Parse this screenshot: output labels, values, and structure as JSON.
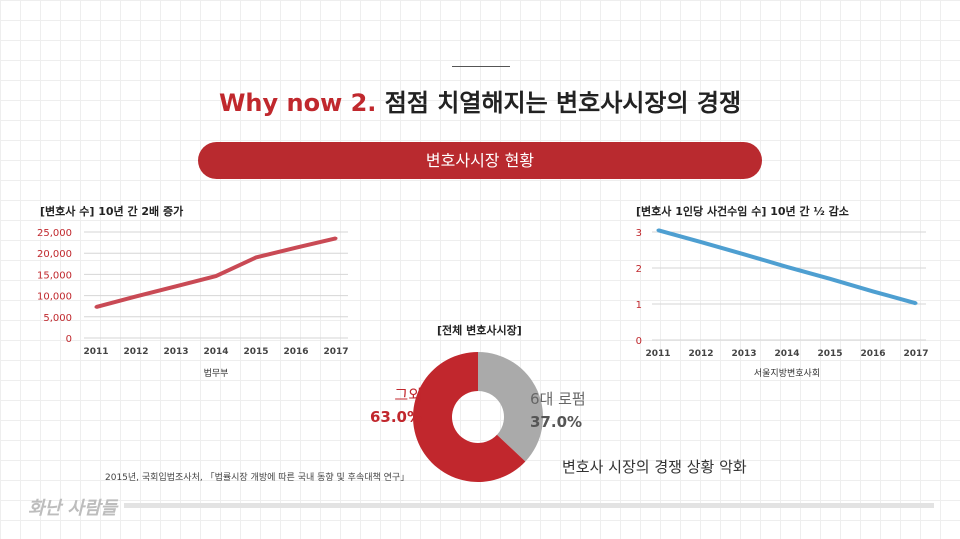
{
  "header": {
    "title_accent": "Why now 2.",
    "title_main": "점점 치열해지는 변호사시장의 경쟁",
    "banner": "변호사시장 현황"
  },
  "chart_data": [
    {
      "type": "line",
      "title": "[변호사 수] 10년 간 2배 증가",
      "x": [
        "2011",
        "2012",
        "2013",
        "2014",
        "2015",
        "2016",
        "2017"
      ],
      "xlabel": "법무부",
      "yticks": [
        "0",
        "5,000",
        "10,000",
        "15,000",
        "20,000",
        "25,000"
      ],
      "ylim": [
        0,
        25000
      ],
      "values": [
        7300,
        9800,
        12200,
        14600,
        19000,
        21300,
        23500
      ],
      "color": "#c94a55",
      "grid": true
    },
    {
      "type": "line",
      "title": "[변호사 1인당 사건수임 수] 10년 간 ½ 감소",
      "x": [
        "2011",
        "2012",
        "2013",
        "2014",
        "2015",
        "2016",
        "2017"
      ],
      "xlabel": "서울지방변호사회",
      "yticks": [
        "0",
        "1",
        "2",
        "3"
      ],
      "ylim": [
        0,
        3
      ],
      "values": [
        3.05,
        2.72,
        2.38,
        2.03,
        1.7,
        1.35,
        1.02
      ],
      "color": "#4e9fd1",
      "grid": true
    },
    {
      "type": "pie",
      "title": "[전체 변호사시장]",
      "labels": [
        "6대 로펌",
        "그외"
      ],
      "values": [
        37.0,
        63.0
      ],
      "value_labels": [
        "37.0%",
        "63.0%"
      ],
      "colors": [
        "#aaaaaa",
        "#c1272d"
      ]
    }
  ],
  "footer": {
    "source": "2015년, 국회입법조사처, 「법률시장 개방에 따른 국내 동향 및 후속대책 연구」",
    "conclusion": "변호사 시장의 경쟁 상황 악화",
    "logo": "화난 사람들"
  }
}
